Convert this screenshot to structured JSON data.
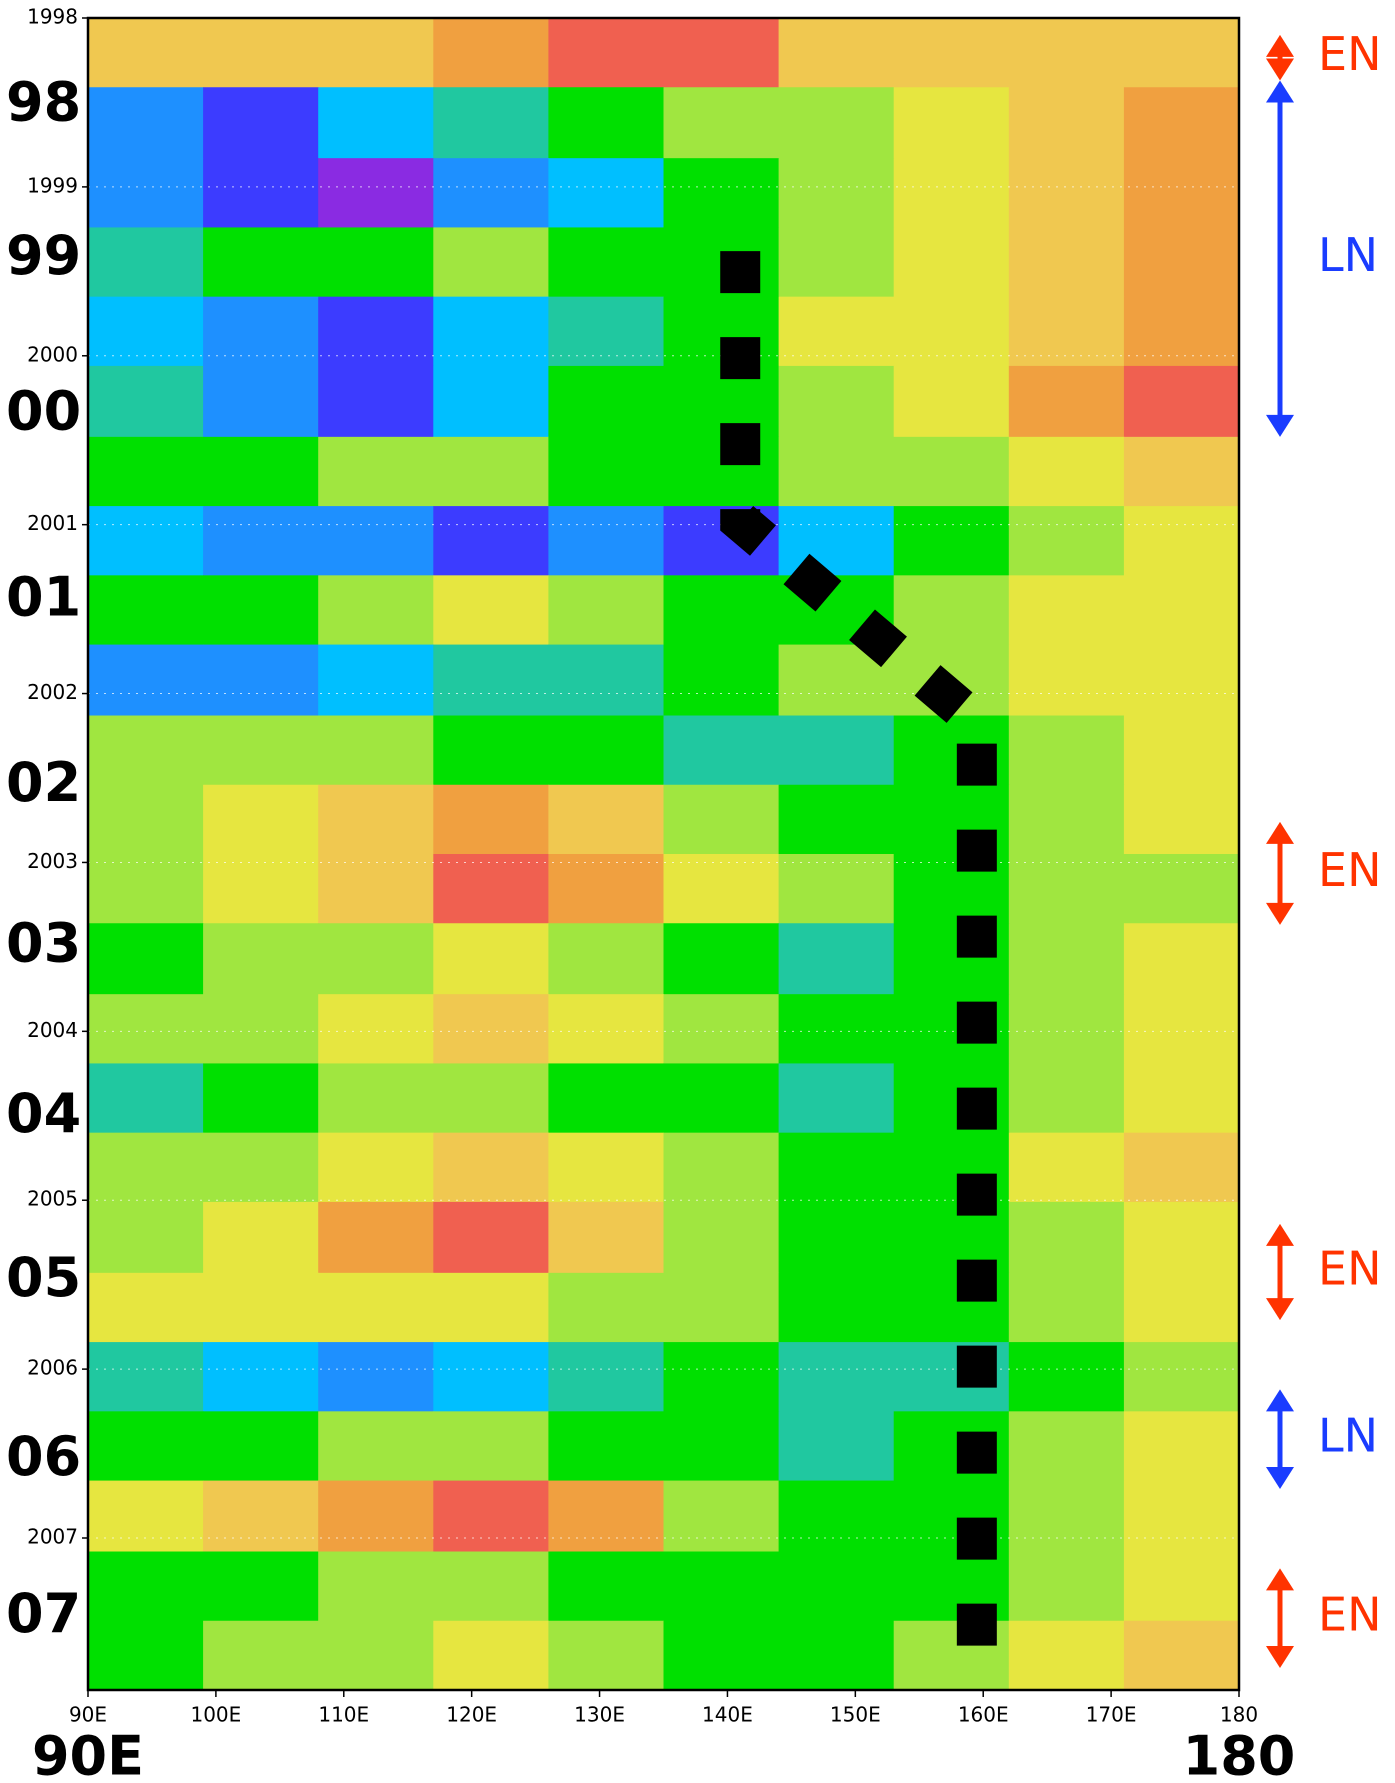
{
  "chart_data": {
    "type": "heatmap",
    "xlim": [
      90,
      180
    ],
    "xticks": [
      {
        "value": 90,
        "label": "90E"
      },
      {
        "value": 100,
        "label": "100E"
      },
      {
        "value": 110,
        "label": "110E"
      },
      {
        "value": 120,
        "label": "120E"
      },
      {
        "value": 130,
        "label": "130E"
      },
      {
        "value": 140,
        "label": "140E"
      },
      {
        "value": 150,
        "label": "150E"
      },
      {
        "value": 160,
        "label": "160E"
      },
      {
        "value": 170,
        "label": "170E"
      },
      180
    ],
    "x_axis_labels": [
      {
        "value": 90,
        "label": "90E"
      },
      {
        "value": 180,
        "label": "180"
      }
    ],
    "ylim": [
      1998,
      2007.9
    ],
    "yticks": [
      1998,
      1999,
      2000,
      2001,
      2002,
      2003,
      2004,
      2005,
      2006,
      2007
    ],
    "year_labels": [
      {
        "value": 1998.52,
        "label": "98"
      },
      {
        "value": 1999.43,
        "label": "99"
      },
      {
        "value": 2000.35,
        "label": "00"
      },
      {
        "value": 2001.45,
        "label": "01"
      },
      {
        "value": 2002.55,
        "label": "02"
      },
      {
        "value": 2003.5,
        "label": "03"
      },
      {
        "value": 2004.51,
        "label": "04"
      },
      {
        "value": 2005.48,
        "label": "05"
      },
      {
        "value": 2006.54,
        "label": "06"
      },
      {
        "value": 2007.47,
        "label": "07"
      }
    ],
    "colors": [
      "#8a2be2",
      "#3c3cff",
      "#1e90ff",
      "#00bfff",
      "#20c8a0",
      "#00e000",
      "#a0e640",
      "#e6e640",
      "#f0c850",
      "#f0a040",
      "#f06050",
      "#f0208c"
    ],
    "zlim": [
      -5,
      6
    ],
    "x": [
      94.5,
      103.5,
      112.5,
      121.5,
      130.5,
      139.5,
      148.5,
      157.5,
      166.5,
      175.5
    ],
    "y": [
      1998,
      1998.41,
      1998.83,
      1999.24,
      1999.65,
      2000.06,
      2000.48,
      2000.89,
      2001.3,
      2001.71,
      2002.13,
      2002.54,
      2002.95,
      2003.36,
      2003.78,
      2004.19,
      2004.6,
      2005.01,
      2005.43,
      2005.84,
      2006.25,
      2006.66,
      2007.08,
      2007.49
    ],
    "z": [
      [
        3,
        3,
        3,
        4,
        5,
        5,
        3,
        3,
        3,
        3
      ],
      [
        -3,
        -4,
        -2,
        -1,
        0,
        1,
        1,
        2,
        3,
        4
      ],
      [
        -3,
        -4,
        -5,
        -3,
        -2,
        0,
        1,
        2,
        3,
        4
      ],
      [
        -1,
        0,
        0,
        1,
        0,
        0,
        1,
        2,
        3,
        4
      ],
      [
        -2,
        -3,
        -4,
        -2,
        -1,
        0,
        2,
        2,
        3,
        4
      ],
      [
        -1,
        -3,
        -4,
        -2,
        0,
        0,
        1,
        2,
        4,
        5
      ],
      [
        0,
        0,
        1,
        1,
        0,
        0,
        1,
        1,
        2,
        3
      ],
      [
        -2,
        -3,
        -3,
        -4,
        -3,
        -4,
        -2,
        0,
        1,
        2
      ],
      [
        0,
        0,
        1,
        2,
        1,
        0,
        0,
        1,
        2,
        2
      ],
      [
        -3,
        -3,
        -2,
        -1,
        -1,
        0,
        1,
        1,
        2,
        2
      ],
      [
        1,
        1,
        1,
        0,
        0,
        -1,
        -1,
        0,
        1,
        2
      ],
      [
        1,
        2,
        3,
        4,
        3,
        1,
        0,
        0,
        1,
        2
      ],
      [
        1,
        2,
        3,
        5,
        4,
        2,
        1,
        0,
        1,
        1
      ],
      [
        0,
        1,
        1,
        2,
        1,
        0,
        -1,
        0,
        1,
        2
      ],
      [
        1,
        1,
        2,
        3,
        2,
        1,
        0,
        0,
        1,
        2
      ],
      [
        -1,
        0,
        1,
        1,
        0,
        0,
        -1,
        0,
        1,
        2
      ],
      [
        1,
        1,
        2,
        3,
        2,
        1,
        0,
        0,
        2,
        3
      ],
      [
        1,
        2,
        4,
        5,
        3,
        1,
        0,
        0,
        1,
        2
      ],
      [
        2,
        2,
        2,
        2,
        1,
        1,
        0,
        0,
        1,
        2
      ],
      [
        -1,
        -2,
        -3,
        -2,
        -1,
        0,
        -1,
        -1,
        0,
        1
      ],
      [
        0,
        0,
        1,
        1,
        0,
        0,
        -1,
        0,
        1,
        2
      ],
      [
        2,
        3,
        4,
        5,
        4,
        1,
        0,
        0,
        1,
        2
      ],
      [
        0,
        0,
        1,
        1,
        0,
        0,
        0,
        0,
        1,
        2
      ],
      [
        0,
        1,
        1,
        2,
        1,
        0,
        0,
        1,
        2,
        3
      ]
    ],
    "path": {
      "color": "#000000",
      "x": [
        141,
        141,
        159.5,
        159.5
      ],
      "y": [
        1999.38,
        2000.98,
        2002.17,
        2007.69
      ]
    },
    "annotations": [
      {
        "label": "EN",
        "color": "#ff3300",
        "range": [
          1998.1,
          1998.37
        ]
      },
      {
        "label": "LN",
        "color": "#1a3cff",
        "range": [
          1998.37,
          2000.48
        ]
      },
      {
        "label": "EN",
        "color": "#ff3300",
        "range": [
          2002.76,
          2003.37
        ]
      },
      {
        "label": "EN",
        "color": "#ff3300",
        "range": [
          2005.14,
          2005.71
        ]
      },
      {
        "label": "LN",
        "color": "#1a3cff",
        "range": [
          2006.12,
          2006.71
        ]
      },
      {
        "label": "EN",
        "color": "#ff3300",
        "range": [
          2007.18,
          2007.77
        ]
      }
    ]
  }
}
